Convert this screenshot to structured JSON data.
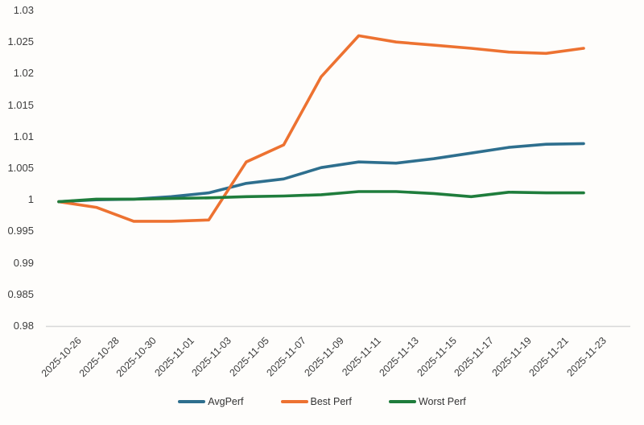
{
  "chart_data": {
    "type": "line",
    "title": "",
    "xlabel": "",
    "ylabel": "",
    "grid": false,
    "legend_position": "bottom",
    "ylim": [
      0.98,
      1.03
    ],
    "y_ticks": [
      "1.03",
      "1.025",
      "1.02",
      "1.015",
      "1.01",
      "1.005",
      "1",
      "0.995",
      "0.99",
      "0.985",
      "0.98"
    ],
    "x_categories": [
      "2025-10-26",
      "2025-10-28",
      "2025-10-30",
      "2025-11-01",
      "2025-11-03",
      "2025-11-05",
      "2025-11-07",
      "2025-11-09",
      "2025-11-11",
      "2025-11-13",
      "2025-11-15",
      "2025-11-17",
      "2025-11-19",
      "2025-11-21",
      "2025-11-23"
    ],
    "series": [
      {
        "name": "AvgPerf",
        "color": "#2e6f8e",
        "values": [
          0.9997,
          1.0,
          1.0001,
          1.0005,
          1.0011,
          1.0026,
          1.0033,
          1.0051,
          1.006,
          1.0058,
          1.0065,
          1.0074,
          1.0083,
          1.0088,
          1.0089
        ]
      },
      {
        "name": "Best Perf",
        "color": "#ed7231",
        "values": [
          0.9997,
          0.9988,
          0.9966,
          0.9966,
          0.9968,
          1.006,
          1.0087,
          1.0195,
          1.026,
          1.025,
          1.0245,
          1.024,
          1.0234,
          1.0232,
          1.024
        ]
      },
      {
        "name": "Worst Perf",
        "color": "#1f7d3c",
        "values": [
          0.9997,
          1.0001,
          1.0001,
          1.0002,
          1.0003,
          1.0005,
          1.0006,
          1.0008,
          1.0013,
          1.0013,
          1.001,
          1.0005,
          1.0012,
          1.0011,
          1.0011
        ]
      }
    ],
    "axis_line_color": "#d8d8d8",
    "label_color": "#3d3d3d"
  }
}
